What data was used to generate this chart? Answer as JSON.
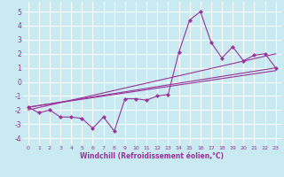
{
  "xlabel": "Windchill (Refroidissement éolien,°C)",
  "ylabel": "",
  "background_color": "#c8eaf0",
  "grid_color": "#ffffff",
  "line_color": "#993399",
  "xlim": [
    -0.5,
    23.5
  ],
  "ylim": [
    -4.5,
    5.7
  ],
  "xticks": [
    0,
    1,
    2,
    3,
    4,
    5,
    6,
    7,
    8,
    9,
    10,
    11,
    12,
    13,
    14,
    15,
    16,
    17,
    18,
    19,
    20,
    21,
    22,
    23
  ],
  "yticks": [
    -4,
    -3,
    -2,
    -1,
    0,
    1,
    2,
    3,
    4,
    5
  ],
  "line1_x": [
    0,
    1,
    2,
    3,
    4,
    5,
    6,
    7,
    8,
    9,
    10,
    11,
    12,
    13,
    14,
    15,
    16,
    17,
    18,
    19,
    20,
    21,
    22,
    23
  ],
  "line1_y": [
    -1.8,
    -2.2,
    -2.0,
    -2.5,
    -2.5,
    -2.6,
    -3.3,
    -2.5,
    -3.5,
    -1.2,
    -1.2,
    -1.3,
    -1.0,
    -0.9,
    2.1,
    4.4,
    5.0,
    2.8,
    1.7,
    2.5,
    1.5,
    1.9,
    2.0,
    1.0
  ],
  "line2_x": [
    0,
    23
  ],
  "line2_y": [
    -1.8,
    1.0
  ],
  "line3_x": [
    0,
    23
  ],
  "line3_y": [
    -1.8,
    0.8
  ],
  "line4_x": [
    0,
    23
  ],
  "line4_y": [
    -2.0,
    2.0
  ]
}
